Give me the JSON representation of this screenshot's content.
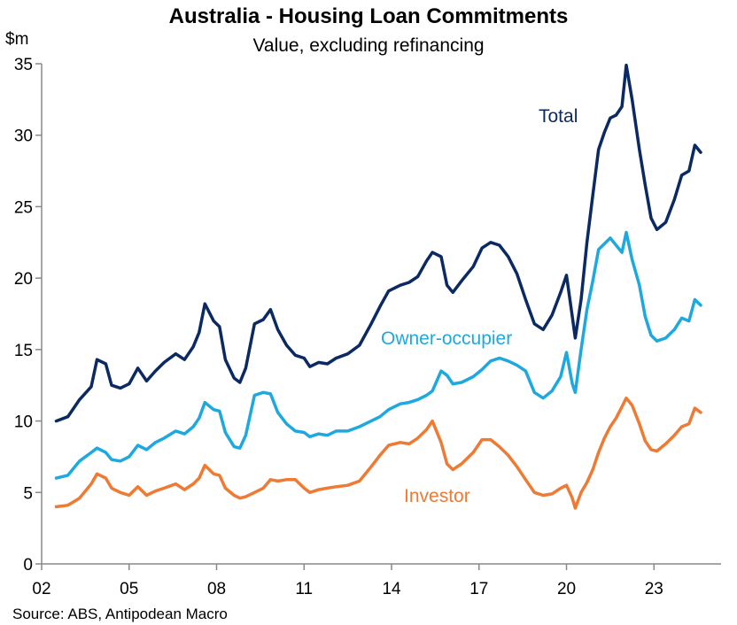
{
  "chart_data": {
    "type": "line",
    "title": "Australia - Housing Loan Commitments",
    "subtitle": "Value, excluding refinancing",
    "ylabel": "$m",
    "source": "Source: ABS, Antipodean Macro",
    "ylim": [
      0,
      35
    ],
    "xlim": [
      2002.0,
      2025.3
    ],
    "x_ticks": [
      {
        "value": 2002,
        "label": "02"
      },
      {
        "value": 2005,
        "label": "05"
      },
      {
        "value": 2008,
        "label": "08"
      },
      {
        "value": 2011,
        "label": "11"
      },
      {
        "value": 2014,
        "label": "14"
      },
      {
        "value": 2017,
        "label": "17"
      },
      {
        "value": 2020,
        "label": "20"
      },
      {
        "value": 2023,
        "label": "23"
      }
    ],
    "y_ticks": [
      0,
      5,
      10,
      15,
      20,
      25,
      30,
      35
    ],
    "grid": false,
    "legend": "inline labels",
    "colors": {
      "total": "#0b2a63",
      "owner": "#1ea8e0",
      "investor": "#ee7a34",
      "axis": "#888888"
    },
    "series": [
      {
        "name": "Total",
        "key": "total",
        "points": [
          [
            2002.5,
            10.0
          ],
          [
            2002.9,
            10.3
          ],
          [
            2003.3,
            11.5
          ],
          [
            2003.7,
            12.4
          ],
          [
            2003.9,
            14.3
          ],
          [
            2004.2,
            14.0
          ],
          [
            2004.4,
            12.5
          ],
          [
            2004.7,
            12.3
          ],
          [
            2005.0,
            12.6
          ],
          [
            2005.3,
            13.7
          ],
          [
            2005.6,
            12.8
          ],
          [
            2005.9,
            13.5
          ],
          [
            2006.2,
            14.1
          ],
          [
            2006.6,
            14.7
          ],
          [
            2006.9,
            14.3
          ],
          [
            2007.2,
            15.2
          ],
          [
            2007.4,
            16.2
          ],
          [
            2007.6,
            18.2
          ],
          [
            2007.9,
            17.0
          ],
          [
            2008.1,
            16.6
          ],
          [
            2008.3,
            14.3
          ],
          [
            2008.6,
            13.0
          ],
          [
            2008.8,
            12.7
          ],
          [
            2009.0,
            13.7
          ],
          [
            2009.3,
            16.8
          ],
          [
            2009.6,
            17.1
          ],
          [
            2009.85,
            17.8
          ],
          [
            2010.1,
            16.4
          ],
          [
            2010.4,
            15.3
          ],
          [
            2010.7,
            14.6
          ],
          [
            2011.0,
            14.4
          ],
          [
            2011.2,
            13.8
          ],
          [
            2011.5,
            14.1
          ],
          [
            2011.8,
            14.0
          ],
          [
            2012.1,
            14.4
          ],
          [
            2012.5,
            14.7
          ],
          [
            2012.9,
            15.3
          ],
          [
            2013.3,
            16.8
          ],
          [
            2013.6,
            18.0
          ],
          [
            2013.9,
            19.1
          ],
          [
            2014.3,
            19.5
          ],
          [
            2014.6,
            19.7
          ],
          [
            2014.9,
            20.1
          ],
          [
            2015.2,
            21.2
          ],
          [
            2015.4,
            21.8
          ],
          [
            2015.7,
            21.5
          ],
          [
            2015.9,
            19.5
          ],
          [
            2016.1,
            19.0
          ],
          [
            2016.4,
            19.8
          ],
          [
            2016.8,
            20.8
          ],
          [
            2017.1,
            22.1
          ],
          [
            2017.4,
            22.5
          ],
          [
            2017.7,
            22.3
          ],
          [
            2018.0,
            21.5
          ],
          [
            2018.3,
            20.3
          ],
          [
            2018.6,
            18.5
          ],
          [
            2018.9,
            16.8
          ],
          [
            2019.2,
            16.4
          ],
          [
            2019.5,
            17.4
          ],
          [
            2019.8,
            19.0
          ],
          [
            2020.0,
            20.2
          ],
          [
            2020.2,
            17.3
          ],
          [
            2020.3,
            15.8
          ],
          [
            2020.5,
            18.5
          ],
          [
            2020.7,
            22.5
          ],
          [
            2020.9,
            25.8
          ],
          [
            2021.1,
            29.0
          ],
          [
            2021.3,
            30.2
          ],
          [
            2021.5,
            31.2
          ],
          [
            2021.7,
            31.4
          ],
          [
            2021.9,
            32.0
          ],
          [
            2022.05,
            34.9
          ],
          [
            2022.25,
            32.5
          ],
          [
            2022.5,
            29.0
          ],
          [
            2022.7,
            26.5
          ],
          [
            2022.9,
            24.2
          ],
          [
            2023.1,
            23.4
          ],
          [
            2023.4,
            23.9
          ],
          [
            2023.7,
            25.5
          ],
          [
            2023.95,
            27.2
          ],
          [
            2024.2,
            27.5
          ],
          [
            2024.4,
            29.3
          ],
          [
            2024.6,
            28.8
          ]
        ]
      },
      {
        "name": "Owner-occupier",
        "key": "owner",
        "points": [
          [
            2002.5,
            6.0
          ],
          [
            2002.9,
            6.2
          ],
          [
            2003.3,
            7.2
          ],
          [
            2003.7,
            7.8
          ],
          [
            2003.9,
            8.1
          ],
          [
            2004.2,
            7.8
          ],
          [
            2004.4,
            7.3
          ],
          [
            2004.7,
            7.2
          ],
          [
            2005.0,
            7.5
          ],
          [
            2005.3,
            8.3
          ],
          [
            2005.6,
            8.0
          ],
          [
            2005.9,
            8.5
          ],
          [
            2006.2,
            8.8
          ],
          [
            2006.6,
            9.3
          ],
          [
            2006.9,
            9.1
          ],
          [
            2007.2,
            9.6
          ],
          [
            2007.4,
            10.2
          ],
          [
            2007.6,
            11.3
          ],
          [
            2007.9,
            10.8
          ],
          [
            2008.1,
            10.7
          ],
          [
            2008.3,
            9.2
          ],
          [
            2008.6,
            8.2
          ],
          [
            2008.8,
            8.1
          ],
          [
            2009.0,
            9.0
          ],
          [
            2009.3,
            11.8
          ],
          [
            2009.6,
            12.0
          ],
          [
            2009.85,
            11.9
          ],
          [
            2010.1,
            10.6
          ],
          [
            2010.4,
            9.8
          ],
          [
            2010.7,
            9.3
          ],
          [
            2011.0,
            9.2
          ],
          [
            2011.2,
            8.9
          ],
          [
            2011.5,
            9.1
          ],
          [
            2011.8,
            9.0
          ],
          [
            2012.1,
            9.3
          ],
          [
            2012.5,
            9.3
          ],
          [
            2012.9,
            9.6
          ],
          [
            2013.3,
            10.0
          ],
          [
            2013.6,
            10.3
          ],
          [
            2013.9,
            10.8
          ],
          [
            2014.3,
            11.2
          ],
          [
            2014.6,
            11.3
          ],
          [
            2014.9,
            11.5
          ],
          [
            2015.2,
            11.8
          ],
          [
            2015.4,
            12.1
          ],
          [
            2015.7,
            13.5
          ],
          [
            2015.9,
            13.2
          ],
          [
            2016.1,
            12.6
          ],
          [
            2016.4,
            12.7
          ],
          [
            2016.8,
            13.1
          ],
          [
            2017.1,
            13.6
          ],
          [
            2017.4,
            14.2
          ],
          [
            2017.7,
            14.4
          ],
          [
            2018.0,
            14.2
          ],
          [
            2018.3,
            13.9
          ],
          [
            2018.6,
            13.5
          ],
          [
            2018.9,
            12.0
          ],
          [
            2019.2,
            11.6
          ],
          [
            2019.5,
            12.1
          ],
          [
            2019.8,
            13.1
          ],
          [
            2020.0,
            14.8
          ],
          [
            2020.2,
            12.6
          ],
          [
            2020.3,
            12.0
          ],
          [
            2020.5,
            15.0
          ],
          [
            2020.7,
            17.8
          ],
          [
            2020.9,
            19.8
          ],
          [
            2021.1,
            22.0
          ],
          [
            2021.3,
            22.4
          ],
          [
            2021.5,
            22.8
          ],
          [
            2021.7,
            22.3
          ],
          [
            2021.9,
            21.8
          ],
          [
            2022.05,
            23.2
          ],
          [
            2022.25,
            21.3
          ],
          [
            2022.5,
            19.5
          ],
          [
            2022.7,
            17.3
          ],
          [
            2022.9,
            16.0
          ],
          [
            2023.1,
            15.6
          ],
          [
            2023.4,
            15.8
          ],
          [
            2023.7,
            16.4
          ],
          [
            2023.95,
            17.2
          ],
          [
            2024.2,
            17.0
          ],
          [
            2024.4,
            18.5
          ],
          [
            2024.6,
            18.1
          ]
        ]
      },
      {
        "name": "Investor",
        "key": "investor",
        "points": [
          [
            2002.5,
            4.0
          ],
          [
            2002.9,
            4.1
          ],
          [
            2003.3,
            4.6
          ],
          [
            2003.7,
            5.6
          ],
          [
            2003.9,
            6.3
          ],
          [
            2004.2,
            6.0
          ],
          [
            2004.4,
            5.3
          ],
          [
            2004.7,
            5.0
          ],
          [
            2005.0,
            4.8
          ],
          [
            2005.3,
            5.4
          ],
          [
            2005.6,
            4.8
          ],
          [
            2005.9,
            5.1
          ],
          [
            2006.2,
            5.3
          ],
          [
            2006.6,
            5.6
          ],
          [
            2006.9,
            5.2
          ],
          [
            2007.2,
            5.6
          ],
          [
            2007.4,
            6.0
          ],
          [
            2007.6,
            6.9
          ],
          [
            2007.9,
            6.3
          ],
          [
            2008.1,
            6.2
          ],
          [
            2008.3,
            5.3
          ],
          [
            2008.6,
            4.8
          ],
          [
            2008.8,
            4.6
          ],
          [
            2009.0,
            4.7
          ],
          [
            2009.3,
            5.0
          ],
          [
            2009.6,
            5.3
          ],
          [
            2009.85,
            5.9
          ],
          [
            2010.1,
            5.8
          ],
          [
            2010.4,
            5.9
          ],
          [
            2010.7,
            5.9
          ],
          [
            2011.0,
            5.3
          ],
          [
            2011.2,
            5.0
          ],
          [
            2011.5,
            5.2
          ],
          [
            2011.8,
            5.3
          ],
          [
            2012.1,
            5.4
          ],
          [
            2012.5,
            5.5
          ],
          [
            2012.9,
            5.8
          ],
          [
            2013.3,
            6.8
          ],
          [
            2013.6,
            7.6
          ],
          [
            2013.9,
            8.3
          ],
          [
            2014.3,
            8.5
          ],
          [
            2014.6,
            8.4
          ],
          [
            2014.9,
            8.8
          ],
          [
            2015.2,
            9.4
          ],
          [
            2015.4,
            10.0
          ],
          [
            2015.7,
            8.5
          ],
          [
            2015.9,
            7.0
          ],
          [
            2016.1,
            6.6
          ],
          [
            2016.4,
            7.0
          ],
          [
            2016.8,
            7.8
          ],
          [
            2017.1,
            8.7
          ],
          [
            2017.4,
            8.7
          ],
          [
            2017.7,
            8.2
          ],
          [
            2018.0,
            7.6
          ],
          [
            2018.3,
            6.8
          ],
          [
            2018.6,
            5.9
          ],
          [
            2018.9,
            5.0
          ],
          [
            2019.2,
            4.8
          ],
          [
            2019.5,
            4.9
          ],
          [
            2019.8,
            5.3
          ],
          [
            2020.0,
            5.5
          ],
          [
            2020.2,
            4.6
          ],
          [
            2020.3,
            3.9
          ],
          [
            2020.5,
            5.0
          ],
          [
            2020.7,
            5.7
          ],
          [
            2020.9,
            6.6
          ],
          [
            2021.1,
            7.8
          ],
          [
            2021.3,
            8.8
          ],
          [
            2021.5,
            9.6
          ],
          [
            2021.7,
            10.2
          ],
          [
            2021.9,
            11.0
          ],
          [
            2022.05,
            11.6
          ],
          [
            2022.25,
            11.1
          ],
          [
            2022.5,
            9.8
          ],
          [
            2022.7,
            8.6
          ],
          [
            2022.9,
            8.0
          ],
          [
            2023.1,
            7.9
          ],
          [
            2023.4,
            8.4
          ],
          [
            2023.7,
            9.0
          ],
          [
            2023.95,
            9.6
          ],
          [
            2024.2,
            9.8
          ],
          [
            2024.4,
            10.9
          ],
          [
            2024.6,
            10.6
          ]
        ]
      }
    ]
  }
}
